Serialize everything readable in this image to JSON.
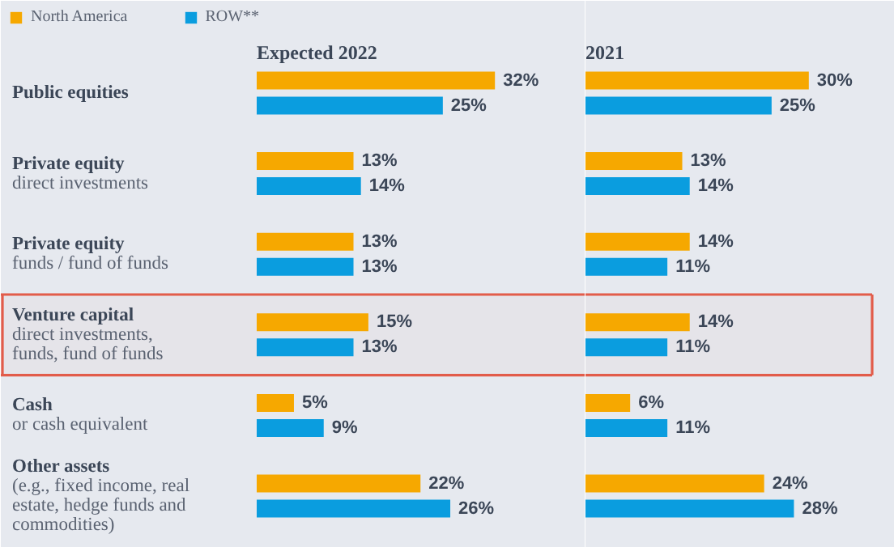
{
  "chart_data": [
    {
      "type": "bar",
      "orientation": "horizontal",
      "title": "Expected 2022",
      "categories": [
        "Public equities",
        "Private equity\ndirect investments",
        "Private equity\nfunds / fund of funds",
        "Venture capital\ndirect investments,\nfunds, fund of funds",
        "Cash\nor cash equivalent",
        "Other assets\n(e.g., fixed income, real\nestate, hedge funds and\ncommodities)"
      ],
      "series": [
        {
          "name": "North America",
          "color": "#f6a800",
          "values": [
            32,
            13,
            13,
            15,
            5,
            22
          ],
          "value_labels": [
            "32%",
            "13%",
            "13%",
            "15%",
            "5%",
            "22%"
          ]
        },
        {
          "name": "ROW**",
          "color": "#0a9ddf",
          "values": [
            25,
            14,
            13,
            13,
            9,
            26
          ],
          "value_labels": [
            "25%",
            "14%",
            "13%",
            "13%",
            "9%",
            "26%"
          ]
        }
      ],
      "legend": "top left",
      "tick_labels": "y",
      "bands": [
        {
          "axis": "y",
          "from": "Venture capital\ndirect investments,\nfunds, fund of funds",
          "to": "Venture capital\ndirect investments,\nfunds, fund of funds",
          "color": "#e25c4a"
        }
      ]
    },
    {
      "type": "bar",
      "orientation": "horizontal",
      "title": "2021",
      "categories": [
        "Public equities",
        "Private equity\ndirect investments",
        "Private equity\nfunds / fund of funds",
        "Venture capital\ndirect investments,\nfunds, fund of funds",
        "Cash\nor cash equivalent",
        "Other assets\n(e.g., fixed income, real\nestate, hedge funds and\ncommodities)"
      ],
      "series": [
        {
          "name": "North America",
          "color": "#f6a800",
          "values": [
            30,
            13,
            14,
            14,
            6,
            24
          ],
          "value_labels": [
            "30%",
            "13%",
            "14%",
            "14%",
            "6%",
            "24%"
          ]
        },
        {
          "name": "ROW**",
          "color": "#0a9ddf",
          "values": [
            25,
            14,
            11,
            11,
            11,
            28
          ],
          "value_labels": [
            "25%",
            "14%",
            "11%",
            "11%",
            "11%",
            "28%"
          ]
        }
      ],
      "tick_labels": false,
      "bands": [
        {
          "axis": "y",
          "from": "Venture capital\ndirect investments,\nfunds, fund of funds",
          "to": "Venture capital\ndirect investments,\nfunds, fund of funds",
          "color": "#e25c4a"
        }
      ]
    }
  ]
}
